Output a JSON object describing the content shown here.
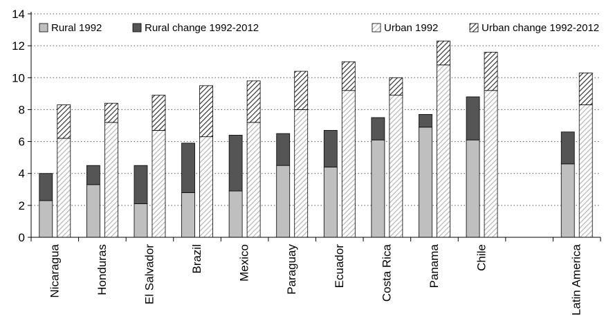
{
  "chart_data": {
    "type": "bar",
    "stacked": true,
    "grouped": true,
    "title": "",
    "xlabel": "",
    "ylabel": "",
    "ylim": [
      0,
      14
    ],
    "yticks": [
      0,
      2,
      4,
      6,
      8,
      10,
      12,
      14
    ],
    "grid": "horizontal-dotted",
    "legend_position": "top",
    "categories": [
      "Nicaragua",
      "Honduras",
      "El Salvador",
      "Brazil",
      "Mexico",
      "Paraguay",
      "Ecuador",
      "Costa Rica",
      "Panama",
      "Chile",
      "",
      "Latin America"
    ],
    "series": [
      {
        "name": "Rural 1992",
        "group": "rural",
        "style": "solid-light-gray",
        "color": "#bfbfbf",
        "values": [
          2.3,
          3.3,
          2.1,
          2.8,
          2.9,
          4.5,
          4.4,
          6.1,
          6.9,
          6.1,
          null,
          4.6
        ]
      },
      {
        "name": "Rural change 1992-2012",
        "group": "rural",
        "style": "solid-dark-gray",
        "color": "#555555",
        "values": [
          1.7,
          1.2,
          2.4,
          3.1,
          3.5,
          2.0,
          2.3,
          1.4,
          0.8,
          2.7,
          null,
          2.0
        ]
      },
      {
        "name": "Urban 1992",
        "group": "urban",
        "style": "light-hatch",
        "color": "#bdbdbd",
        "values": [
          6.2,
          7.2,
          6.7,
          6.3,
          7.2,
          8.0,
          9.2,
          8.9,
          10.8,
          9.2,
          null,
          8.3
        ]
      },
      {
        "name": "Urban change 1992-2012",
        "group": "urban",
        "style": "dark-hatch",
        "color": "#333333",
        "values": [
          2.1,
          1.2,
          2.2,
          3.2,
          2.6,
          2.4,
          1.8,
          1.1,
          1.5,
          2.4,
          null,
          2.0
        ]
      }
    ]
  }
}
